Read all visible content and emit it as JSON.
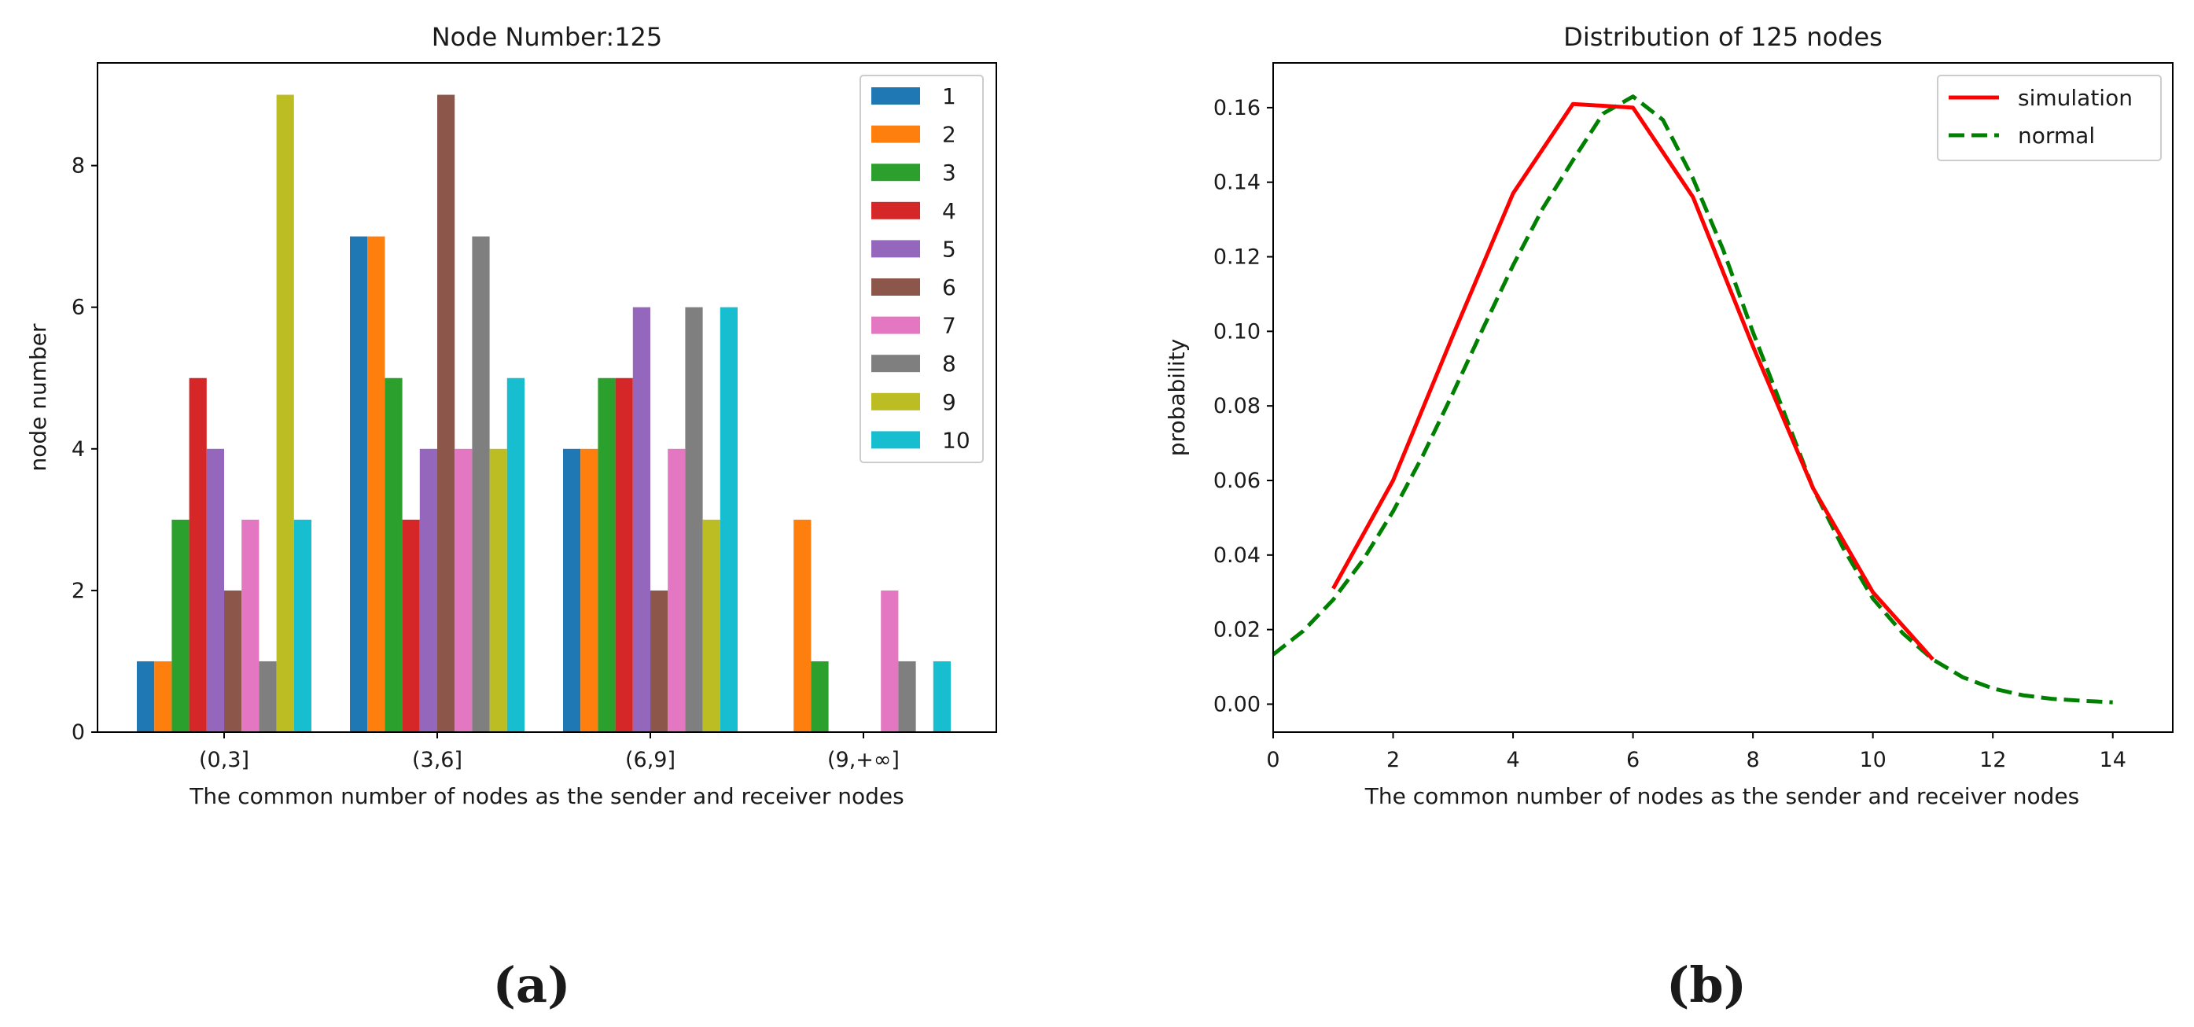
{
  "chart_data": [
    {
      "type": "bar",
      "title": "Node Number:125",
      "xlabel": "The common number of nodes as the sender and receiver nodes",
      "ylabel": "node number",
      "categories": [
        "(0,3]",
        "(3,6]",
        "(6,9]",
        "(9,+∞]"
      ],
      "ylim": [
        0,
        9.45
      ],
      "yticks": [
        0,
        2,
        4,
        6,
        8
      ],
      "legend_position": "upper-right",
      "grid": false,
      "series": [
        {
          "name": "1",
          "color": "#1f77b4",
          "values": [
            1,
            7,
            4,
            0
          ]
        },
        {
          "name": "2",
          "color": "#ff7f0e",
          "values": [
            1,
            7,
            4,
            3
          ]
        },
        {
          "name": "3",
          "color": "#2ca02c",
          "values": [
            3,
            5,
            5,
            1
          ]
        },
        {
          "name": "4",
          "color": "#d62728",
          "values": [
            5,
            3,
            5,
            0
          ]
        },
        {
          "name": "5",
          "color": "#9467bd",
          "values": [
            4,
            4,
            6,
            0
          ]
        },
        {
          "name": "6",
          "color": "#8c564b",
          "values": [
            2,
            9,
            2,
            0
          ]
        },
        {
          "name": "7",
          "color": "#e377c2",
          "values": [
            3,
            4,
            4,
            2
          ]
        },
        {
          "name": "8",
          "color": "#7f7f7f",
          "values": [
            1,
            7,
            6,
            1
          ]
        },
        {
          "name": "9",
          "color": "#bcbd22",
          "values": [
            9,
            4,
            3,
            0
          ]
        },
        {
          "name": "10",
          "color": "#17becf",
          "values": [
            3,
            5,
            6,
            1
          ]
        }
      ],
      "panel_label": "(a)"
    },
    {
      "type": "line",
      "title": "Distribution of 125 nodes",
      "xlabel": "The common number of nodes as the sender and receiver nodes",
      "ylabel": "probability",
      "xlim": [
        0,
        15
      ],
      "ylim": [
        -0.0075,
        0.172
      ],
      "xticks": [
        0,
        2,
        4,
        6,
        8,
        10,
        12,
        14
      ],
      "yticks": [
        0.0,
        0.02,
        0.04,
        0.06,
        0.08,
        0.1,
        0.12,
        0.14,
        0.16
      ],
      "ytick_labels": [
        "0.00",
        "0.02",
        "0.04",
        "0.06",
        "0.08",
        "0.10",
        "0.12",
        "0.14",
        "0.16"
      ],
      "legend_position": "upper-right",
      "grid": false,
      "series": [
        {
          "name": "simulation",
          "color": "#ff0000",
          "style": "solid",
          "x": [
            1,
            2,
            3,
            4,
            5,
            6,
            7,
            8,
            9,
            10,
            11
          ],
          "y": [
            0.031,
            0.06,
            0.099,
            0.137,
            0.161,
            0.16,
            0.136,
            0.096,
            0.058,
            0.03,
            0.012
          ]
        },
        {
          "name": "normal",
          "color": "#008000",
          "style": "dashed",
          "x": [
            0,
            0.5,
            1,
            1.5,
            2,
            2.5,
            3,
            3.5,
            4,
            4.5,
            5,
            5.5,
            6,
            6.5,
            7,
            7.5,
            8,
            8.5,
            9,
            9.5,
            10,
            10.5,
            11,
            11.5,
            12,
            12.5,
            13,
            13.5,
            14
          ],
          "y": [
            0.0133,
            0.0196,
            0.028,
            0.0387,
            0.0517,
            0.0668,
            0.0835,
            0.1008,
            0.1177,
            0.1331,
            0.1459,
            0.1584,
            0.163,
            0.1567,
            0.141,
            0.122,
            0.0998,
            0.079,
            0.058,
            0.042,
            0.0283,
            0.019,
            0.012,
            0.0072,
            0.0042,
            0.0024,
            0.0014,
            0.0009,
            0.0005
          ]
        }
      ],
      "panel_label": "(b)"
    }
  ]
}
